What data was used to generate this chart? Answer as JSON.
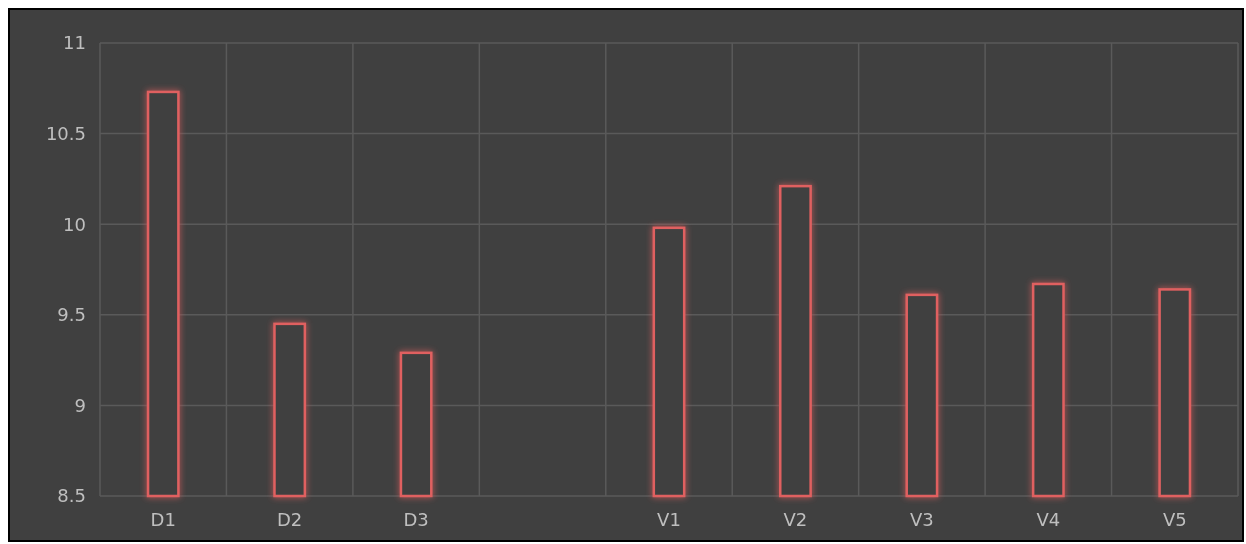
{
  "chart_data": {
    "type": "bar",
    "categories": [
      "D1",
      "D2",
      "D3",
      null,
      "V1",
      "V2",
      "V3",
      "V4",
      "V5"
    ],
    "values": [
      10.73,
      9.45,
      9.29,
      null,
      9.98,
      10.21,
      9.61,
      9.67,
      9.64
    ],
    "color": "#e06060",
    "ylim": [
      8.5,
      11
    ],
    "yticks": [
      8.5,
      9,
      9.5,
      10,
      10.5,
      11
    ],
    "grid": true
  }
}
